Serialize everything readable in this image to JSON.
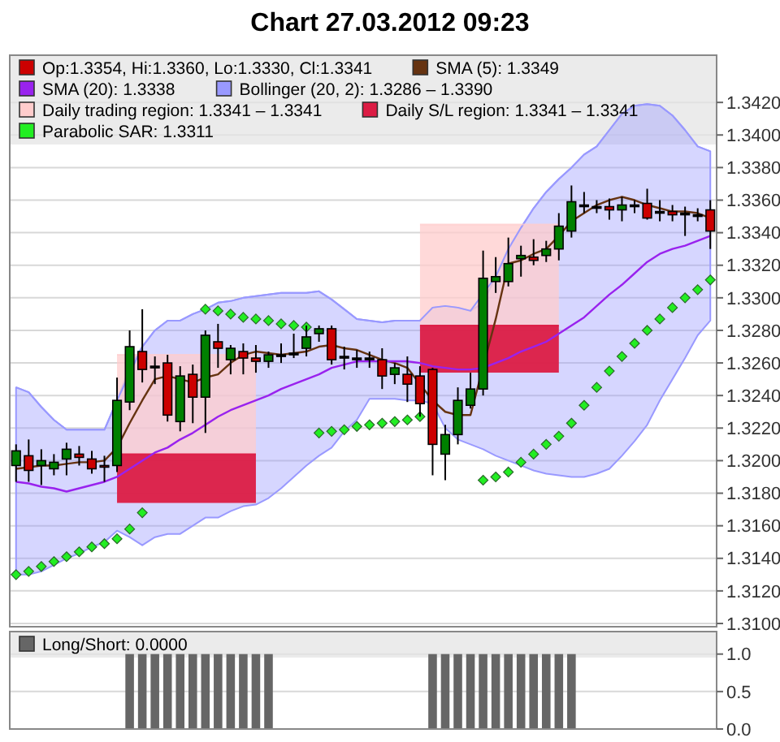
{
  "chart_data": [
    {
      "type": "candlestick",
      "title": "Chart 27.03.2012 09:23",
      "categories": [
        null,
        null,
        null,
        null,
        null,
        null,
        null,
        null,
        null,
        null,
        null,
        null,
        null,
        null,
        null,
        null,
        null,
        null,
        null,
        null,
        null,
        null,
        null,
        null,
        null,
        null,
        null,
        null,
        null,
        null,
        null,
        null,
        null,
        null,
        null,
        null,
        null,
        null,
        null,
        null,
        null,
        null,
        null,
        null,
        null,
        null,
        null,
        null,
        null,
        null,
        null,
        null,
        null,
        null,
        null,
        null
      ],
      "ylim": [
        1.3098,
        1.3449
      ],
      "yticks": [
        {
          "value": 1.31,
          "label": "1.3100"
        },
        {
          "value": 1.312,
          "label": "1.3120"
        },
        {
          "value": 1.314,
          "label": "1.3140"
        },
        {
          "value": 1.316,
          "label": "1.3160"
        },
        {
          "value": 1.318,
          "label": "1.3180"
        },
        {
          "value": 1.32,
          "label": "1.3200"
        },
        {
          "value": 1.322,
          "label": "1.3220"
        },
        {
          "value": 1.324,
          "label": "1.3240"
        },
        {
          "value": 1.326,
          "label": "1.3260"
        },
        {
          "value": 1.328,
          "label": "1.3280"
        },
        {
          "value": 1.33,
          "label": "1.3300"
        },
        {
          "value": 1.332,
          "label": "1.3320"
        },
        {
          "value": 1.334,
          "label": "1.3340"
        },
        {
          "value": 1.336,
          "label": "1.3360"
        },
        {
          "value": 1.338,
          "label": "1.3380"
        },
        {
          "value": 1.34,
          "label": "1.3400"
        },
        {
          "value": 1.342,
          "label": "1.3420"
        }
      ],
      "grid": "y",
      "legend": "top",
      "series": [
        {
          "type": "candlestick",
          "name": "Op:1.3354, Hi:1.3360, Lo:1.3330, Cl:1.3341",
          "color": "#cc0000",
          "colors": [
            "#008000",
            "#cc0000",
            "#008000",
            "#008000",
            "#008000",
            "#cc0000",
            "#cc0000",
            "#cc0000",
            "#008000",
            "#008000",
            "#cc0000",
            "#000000",
            "#cc0000",
            "#008000",
            "#cc0000",
            "#008000",
            "#cc0000",
            "#008000",
            "#cc0000",
            "#cc0000",
            "#008000",
            "#000000",
            "#000000",
            "#008000",
            "#008000",
            "#cc0000",
            "#000000",
            "#000000",
            "#000000",
            "#cc0000",
            "#008000",
            "#cc0000",
            "#cc0000",
            "#cc0000",
            "#008000",
            "#008000",
            "#008000",
            "#008000",
            "#008000",
            "#008000",
            "#008000",
            "#cc0000",
            "#008000",
            "#008000",
            "#008000",
            "#000000",
            "#000000",
            "#cc0000",
            "#008000",
            "#000000",
            "#cc0000",
            "#000000",
            "#cc0000",
            "#000000",
            "#000000",
            "#cc0000"
          ],
          "ohlc": [
            [
              1.3197,
              1.321,
              1.3187,
              1.3206
            ],
            [
              1.3203,
              1.3213,
              1.3187,
              1.3194
            ],
            [
              1.3197,
              1.3207,
              1.3185,
              1.32
            ],
            [
              1.3195,
              1.3204,
              1.3191,
              1.3199
            ],
            [
              1.3201,
              1.3211,
              1.3191,
              1.3207
            ],
            [
              1.3204,
              1.3209,
              1.3197,
              1.3202
            ],
            [
              1.3201,
              1.3206,
              1.3192,
              1.3195
            ],
            [
              1.3197,
              1.3203,
              1.3187,
              1.3196
            ],
            [
              1.3197,
              1.3251,
              1.3193,
              1.3237
            ],
            [
              1.3236,
              1.328,
              1.3231,
              1.327
            ],
            [
              1.3267,
              1.3293,
              1.3248,
              1.3256
            ],
            [
              1.3258,
              1.3264,
              1.3247,
              1.3258
            ],
            [
              1.326,
              1.3265,
              1.3224,
              1.3228
            ],
            [
              1.3224,
              1.3258,
              1.3218,
              1.3252
            ],
            [
              1.3253,
              1.3259,
              1.3223,
              1.3239
            ],
            [
              1.3239,
              1.328,
              1.3217,
              1.3277
            ],
            [
              1.3273,
              1.3284,
              1.3257,
              1.3269
            ],
            [
              1.3262,
              1.3271,
              1.3253,
              1.3269
            ],
            [
              1.3267,
              1.3272,
              1.3253,
              1.3263
            ],
            [
              1.3263,
              1.3271,
              1.3254,
              1.3261
            ],
            [
              1.3261,
              1.3267,
              1.3257,
              1.3265
            ],
            [
              1.3265,
              1.3272,
              1.326,
              1.3265
            ],
            [
              1.3266,
              1.3278,
              1.3263,
              1.3266
            ],
            [
              1.3269,
              1.3283,
              1.3264,
              1.3276
            ],
            [
              1.3278,
              1.3283,
              1.3273,
              1.3281
            ],
            [
              1.3281,
              1.3283,
              1.3259,
              1.3262
            ],
            [
              1.3264,
              1.327,
              1.3256,
              1.3264
            ],
            [
              1.3263,
              1.3268,
              1.3257,
              1.3263
            ],
            [
              1.3263,
              1.3267,
              1.3257,
              1.3263
            ],
            [
              1.3262,
              1.3269,
              1.3244,
              1.3252
            ],
            [
              1.3253,
              1.326,
              1.3247,
              1.3257
            ],
            [
              1.3253,
              1.3264,
              1.3236,
              1.3247
            ],
            [
              1.3252,
              1.3258,
              1.3227,
              1.3235
            ],
            [
              1.3256,
              1.3257,
              1.3191,
              1.321
            ],
            [
              1.3204,
              1.3222,
              1.3188,
              1.3216
            ],
            [
              1.3216,
              1.3245,
              1.321,
              1.3237
            ],
            [
              1.3234,
              1.3254,
              1.3232,
              1.3244
            ],
            [
              1.3244,
              1.3329,
              1.324,
              1.3312
            ],
            [
              1.331,
              1.3325,
              1.3303,
              1.3313
            ],
            [
              1.331,
              1.3337,
              1.3307,
              1.3321
            ],
            [
              1.3324,
              1.3332,
              1.3313,
              1.3326
            ],
            [
              1.3325,
              1.3336,
              1.332,
              1.3323
            ],
            [
              1.3326,
              1.3335,
              1.3322,
              1.333
            ],
            [
              1.333,
              1.3352,
              1.3323,
              1.3344
            ],
            [
              1.3341,
              1.3369,
              1.3337,
              1.3359
            ],
            [
              1.3357,
              1.3365,
              1.3352,
              1.3357
            ],
            [
              1.3356,
              1.336,
              1.3352,
              1.3356
            ],
            [
              1.3356,
              1.3361,
              1.3348,
              1.3354
            ],
            [
              1.3354,
              1.3362,
              1.3347,
              1.3357
            ],
            [
              1.3357,
              1.336,
              1.3352,
              1.3357
            ],
            [
              1.3358,
              1.3367,
              1.3348,
              1.3349
            ],
            [
              1.3353,
              1.336,
              1.3347,
              1.3353
            ],
            [
              1.3353,
              1.3357,
              1.3347,
              1.3351
            ],
            [
              1.3352,
              1.3356,
              1.3338,
              1.3352
            ],
            [
              1.3351,
              1.3355,
              1.3347,
              1.3351
            ],
            [
              1.3354,
              1.336,
              1.333,
              1.3341
            ]
          ]
        },
        {
          "type": "line",
          "name": "SMA (5): 1.3349",
          "color": "#663311",
          "values": [
            1.3195,
            1.3196,
            1.3197,
            1.3197,
            1.3198,
            1.3199,
            1.3199,
            1.32,
            1.3208,
            1.3223,
            1.3237,
            1.325,
            1.3252,
            1.325,
            1.3248,
            1.3251,
            1.3253,
            1.326,
            1.3265,
            1.3267,
            1.3266,
            1.3265,
            1.3266,
            1.3267,
            1.327,
            1.3271,
            1.3269,
            1.3268,
            1.3265,
            1.3262,
            1.326,
            1.3257,
            1.3247,
            1.3237,
            1.323,
            1.3228,
            1.3228,
            null,
            1.3287,
            1.3321,
            1.3323,
            1.3327,
            1.333,
            1.3338,
            1.3347,
            1.3352,
            1.3357,
            1.336,
            1.3362,
            1.336,
            1.3357,
            1.3355,
            1.3353,
            1.3353,
            1.3352,
            1.3349
          ]
        },
        {
          "type": "line",
          "name": "SMA (20): 1.3338",
          "color": "#9922ee",
          "values": [
            1.3187,
            1.3186,
            1.3184,
            1.3183,
            1.3181,
            1.3183,
            1.3185,
            1.3187,
            1.319,
            1.3195,
            1.32,
            1.3205,
            1.3208,
            1.3213,
            1.3217,
            1.3222,
            1.3227,
            1.3231,
            1.3234,
            1.3237,
            1.324,
            1.3244,
            1.3247,
            1.325,
            1.3253,
            1.3257,
            1.3259,
            1.3261,
            1.3261,
            1.3261,
            1.3261,
            1.3261,
            1.326,
            1.3258,
            1.3257,
            1.3256,
            1.3256,
            1.3257,
            1.326,
            1.3263,
            1.3267,
            1.327,
            1.3273,
            1.3278,
            1.3283,
            1.3288,
            1.3295,
            1.3302,
            1.3308,
            1.3315,
            1.3322,
            1.3327,
            1.333,
            1.3332,
            1.3335,
            1.3338
          ]
        },
        {
          "type": "line",
          "name": "Bollinger (20, 2): 1.3286 – 1.3390",
          "color": "#9999ff",
          "values": [
            1.3245,
            1.3242,
            1.3233,
            1.3225,
            1.3219,
            1.3219,
            1.3219,
            1.3219,
            1.3237,
            null,
            1.327,
            1.328,
            1.3286,
            1.3286,
            1.329,
            1.3293,
            1.3297,
            1.3298,
            1.33,
            1.3301,
            1.3302,
            1.3303,
            1.3303,
            1.3303,
            1.3304,
            1.3299,
            1.3293,
            1.3287,
            1.3286,
            1.3285,
            1.3286,
            1.3286,
            1.3286,
            1.3294,
            1.3295,
            1.3294,
            1.3292,
            null,
            1.3313,
            1.333,
            1.3343,
            1.3355,
            1.3365,
            1.3373,
            1.338,
            1.3388,
            1.3393,
            1.3403,
            1.3413,
            1.3418,
            1.3419,
            1.3418,
            1.3412,
            1.3403,
            1.3393,
            1.339
          ],
          "upper": [
            1.3245,
            1.3242,
            1.3233,
            1.3225,
            1.3219,
            1.3219,
            1.3219,
            1.3219,
            1.3237,
            1.3257,
            1.327,
            1.328,
            1.3286,
            1.3286,
            1.329,
            1.3293,
            1.3297,
            1.3298,
            1.33,
            1.3301,
            1.3302,
            1.3303,
            1.3303,
            1.3303,
            1.3304,
            1.3299,
            1.3293,
            1.3287,
            1.3286,
            1.3285,
            1.3286,
            1.3286,
            1.3286,
            1.3294,
            1.3295,
            1.3294,
            1.3292,
            1.3297,
            1.3313,
            1.333,
            1.3343,
            1.3355,
            1.3365,
            1.3373,
            1.338,
            1.3388,
            1.3393,
            1.3403,
            1.3413,
            1.3418,
            1.3419,
            1.3418,
            1.3412,
            1.3403,
            1.3393,
            1.339
          ],
          "lower": [
            1.313,
            1.313,
            1.3132,
            1.3136,
            1.314,
            1.3143,
            1.3147,
            1.315,
            1.3157,
            1.3153,
            1.3148,
            1.3153,
            1.3155,
            1.3155,
            1.316,
            1.3165,
            1.3165,
            1.3169,
            1.3172,
            1.3173,
            1.3177,
            1.3183,
            1.319,
            1.3197,
            1.3203,
            1.3208,
            1.3218,
            1.3225,
            1.3238,
            1.3238,
            1.3238,
            1.3237,
            1.3237,
            1.3235,
            1.322,
            1.3213,
            1.321,
            1.3207,
            1.3203,
            1.32,
            1.3197,
            1.3194,
            1.3192,
            1.3191,
            1.319,
            1.319,
            1.3192,
            1.3195,
            1.3203,
            1.3212,
            1.3222,
            1.3237,
            1.325,
            1.3263,
            1.3277,
            1.3286
          ]
        },
        {
          "type": "line",
          "name": "Daily trading region: 1.3341 – 1.3341",
          "color": "#ffcccc",
          "values": [
            null,
            null,
            null,
            null,
            null,
            null,
            null,
            null,
            1.3265,
            null,
            1.3265,
            1.3265,
            1.3265,
            1.3265,
            1.3265,
            null,
            1.3265,
            1.3265,
            1.3265,
            1.3265,
            null,
            null,
            null,
            null,
            null,
            null,
            null,
            null,
            null,
            null,
            null,
            null,
            1.3345,
            1.3345,
            1.3345,
            1.3345,
            1.3345,
            1.3345,
            1.3345,
            1.3345,
            1.3345,
            1.3345,
            1.3345,
            1.3345,
            null,
            null,
            null,
            null,
            null,
            null,
            null,
            null,
            null,
            null,
            null,
            null
          ],
          "upper": [
            null,
            null,
            null,
            null,
            null,
            null,
            null,
            null,
            1.3265,
            1.3265,
            1.3265,
            1.3265,
            1.3265,
            1.3265,
            1.3265,
            1.3265,
            1.3265,
            1.3265,
            1.3265,
            1.3265,
            null,
            null,
            null,
            null,
            null,
            null,
            null,
            null,
            null,
            null,
            null,
            null,
            1.3345,
            1.3345,
            1.3345,
            1.3345,
            1.3345,
            1.3345,
            1.3345,
            1.3345,
            1.3345,
            1.3345,
            1.3345,
            1.3345,
            null,
            null,
            null,
            null,
            null,
            null,
            null,
            null,
            null,
            null,
            null,
            null
          ],
          "lower": [
            null,
            null,
            null,
            null,
            null,
            null,
            null,
            null,
            1.3204,
            1.3204,
            1.3204,
            1.3204,
            1.3204,
            1.3204,
            1.3204,
            1.3204,
            1.3204,
            1.3204,
            1.3204,
            1.3204,
            null,
            null,
            null,
            null,
            null,
            null,
            null,
            null,
            null,
            null,
            null,
            null,
            1.3283,
            1.3283,
            1.3283,
            1.3283,
            1.3283,
            1.3283,
            1.3283,
            1.3283,
            1.3283,
            1.3283,
            1.3283,
            1.3283,
            null,
            null,
            null,
            null,
            null,
            null,
            null,
            null,
            null,
            null,
            null,
            null
          ]
        },
        {
          "type": "line",
          "name": "Daily S/L region: 1.3341 – 1.3341",
          "color": "#dc1c44",
          "values": [
            null,
            null,
            null,
            null,
            null,
            null,
            null,
            null,
            1.3204,
            1.3204,
            1.3204,
            1.3204,
            1.3204,
            1.3204,
            1.3204,
            1.3204,
            1.3204,
            1.3204,
            1.3204,
            1.3204,
            null,
            null,
            null,
            null,
            null,
            null,
            null,
            null,
            null,
            null,
            null,
            null,
            1.3283,
            1.3283,
            1.3283,
            1.3283,
            1.3283,
            1.3283,
            1.3283,
            1.3283,
            1.3283,
            1.3283,
            1.3283,
            1.3283,
            null,
            null,
            null,
            null,
            null,
            null,
            null,
            null,
            null,
            null,
            null,
            null
          ],
          "upper": [
            null,
            null,
            null,
            null,
            null,
            null,
            null,
            null,
            1.3204,
            1.3204,
            1.3204,
            1.3204,
            1.3204,
            1.3204,
            1.3204,
            1.3204,
            1.3204,
            1.3204,
            1.3204,
            1.3204,
            null,
            null,
            null,
            null,
            null,
            null,
            null,
            null,
            null,
            null,
            null,
            null,
            1.3283,
            1.3283,
            1.3283,
            1.3283,
            1.3283,
            1.3283,
            1.3283,
            1.3283,
            1.3283,
            1.3283,
            1.3283,
            1.3283,
            null,
            null,
            null,
            null,
            null,
            null,
            null,
            null,
            null,
            null,
            null,
            null
          ],
          "lower": [
            null,
            null,
            null,
            null,
            null,
            null,
            null,
            null,
            1.3174,
            1.3174,
            1.3174,
            1.3174,
            1.3174,
            1.3174,
            1.3174,
            1.3174,
            1.3174,
            1.3174,
            1.3174,
            1.3174,
            null,
            null,
            null,
            null,
            null,
            null,
            null,
            null,
            null,
            null,
            null,
            null,
            1.3254,
            1.3254,
            1.3254,
            1.3254,
            1.3254,
            1.3254,
            1.3254,
            1.3254,
            1.3254,
            1.3254,
            1.3254,
            1.3254,
            null,
            null,
            null,
            null,
            null,
            null,
            null,
            null,
            null,
            null,
            null,
            null
          ]
        },
        {
          "type": "scatter",
          "name": "Parabolic SAR: 1.3311",
          "color": "#22ee22",
          "marker": "diamond",
          "values": [
            1.313,
            1.3132,
            1.3135,
            1.3138,
            1.3141,
            1.3144,
            1.3147,
            1.3149,
            1.3152,
            1.3158,
            1.3168,
            null,
            null,
            null,
            null,
            1.3293,
            1.3292,
            1.329,
            1.3288,
            1.3287,
            1.3286,
            1.3284,
            1.3283,
            1.3282,
            1.3217,
            1.3218,
            1.3219,
            1.3221,
            1.3222,
            1.3223,
            1.3224,
            1.3225,
            1.3227,
            null,
            null,
            null,
            null,
            1.3188,
            1.319,
            1.3193,
            1.3199,
            1.3204,
            1.321,
            1.3215,
            1.3223,
            1.3234,
            1.3245,
            1.3255,
            1.3264,
            1.3272,
            1.328,
            1.3287,
            1.3294,
            1.33,
            1.3305,
            1.3311
          ]
        }
      ]
    },
    {
      "type": "bar",
      "categories": [
        null,
        null,
        null,
        null,
        null,
        null,
        null,
        null,
        null,
        null,
        null,
        null,
        null,
        null,
        null,
        null,
        null,
        null,
        null,
        null,
        null,
        null,
        null,
        null,
        null,
        null,
        null,
        null,
        null,
        null,
        null,
        null,
        null,
        null,
        null,
        null,
        null,
        null,
        null,
        null,
        null,
        null,
        null,
        null,
        null,
        null,
        null,
        null,
        null,
        null,
        null,
        null,
        null,
        null,
        null,
        null
      ],
      "ylim": [
        0,
        1.3
      ],
      "yticks": [
        {
          "value": 0,
          "label": "0.0"
        },
        {
          "value": 0.5,
          "label": "0.5"
        },
        {
          "value": 1,
          "label": "1.0"
        }
      ],
      "grid": "y",
      "legend": "top",
      "series": [
        {
          "name": "Long/Short: 0.0000",
          "color": "#666666",
          "values": [
            0,
            0,
            0,
            0,
            0,
            0,
            0,
            0,
            0,
            1,
            1,
            1,
            1,
            1,
            1,
            1,
            1,
            1,
            1,
            1,
            1,
            0,
            0,
            0,
            0,
            0,
            0,
            0,
            0,
            0,
            0,
            0,
            0,
            1,
            1,
            1,
            1,
            1,
            1,
            1,
            1,
            1,
            1,
            1,
            1,
            0,
            0,
            0,
            0,
            0,
            0,
            0,
            0,
            0,
            0,
            0
          ]
        }
      ]
    }
  ]
}
